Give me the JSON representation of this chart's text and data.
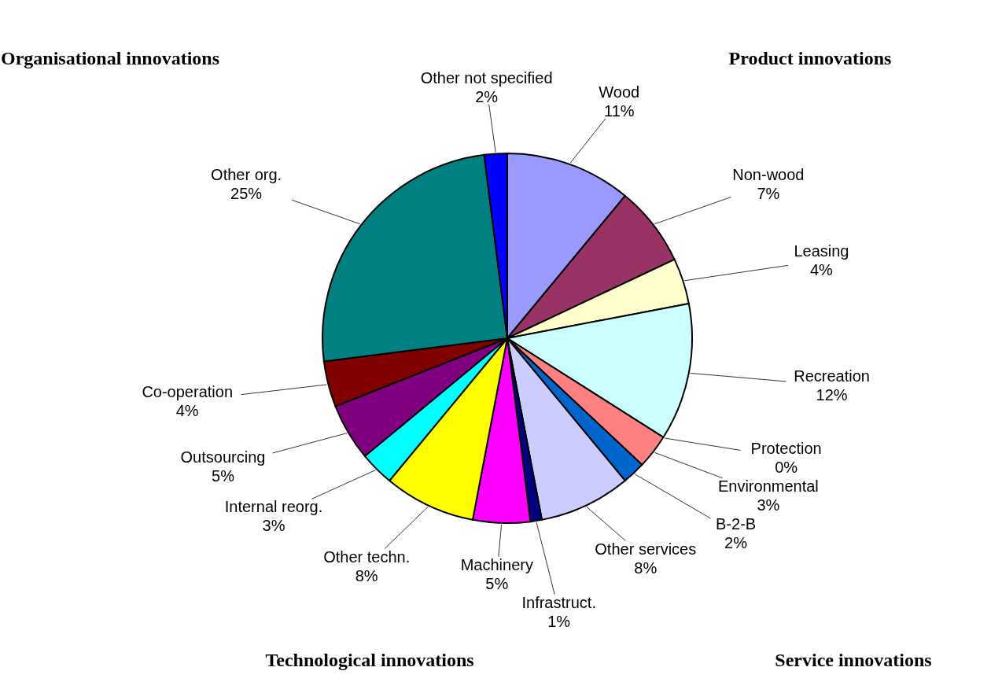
{
  "chart_data": {
    "type": "pie",
    "categories": [
      "Wood",
      "Non-wood",
      "Leasing",
      "Recreation",
      "Protection",
      "Environmental",
      "B-2-B",
      "Other services",
      "Infrastruct.",
      "Machinery",
      "Other techn.",
      "Internal reorg.",
      "Outsourcing",
      "Co-operation",
      "Other org.",
      "Other not specified"
    ],
    "values": [
      11,
      7,
      4,
      12,
      0,
      3,
      2,
      8,
      1,
      5,
      8,
      3,
      5,
      4,
      25,
      2
    ],
    "value_labels": [
      "11%",
      "7%",
      "4%",
      "12%",
      "0%",
      "3%",
      "2%",
      "8%",
      "1%",
      "5%",
      "8%",
      "3%",
      "5%",
      "4%",
      "25%",
      "2%"
    ],
    "colors": [
      "#9999ff",
      "#993366",
      "#ffffcc",
      "#ccffff",
      "#660066",
      "#ff8080",
      "#0066cc",
      "#ccccff",
      "#000080",
      "#ff00ff",
      "#ffff00",
      "#00ffff",
      "#800080",
      "#800000",
      "#008080",
      "#0000ff"
    ],
    "annotations": [
      "Product innovations",
      "Service innovations",
      "Technological innovations",
      "Organisational innovations"
    ]
  }
}
